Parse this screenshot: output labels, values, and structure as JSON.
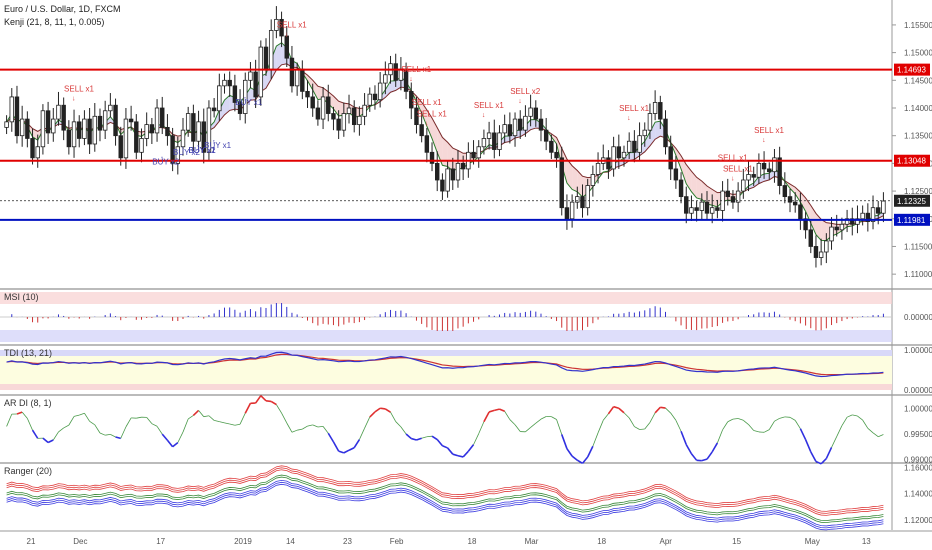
{
  "header": {
    "symbol_line": "Euro / U.S. Dollar, 1D, FXCM",
    "indicator_line": "Kenji (21, 8, 11, 1, 0.005)"
  },
  "colors": {
    "up": "#ffffff",
    "down": "#222222",
    "res_line": "#e00000",
    "sup_line": "#0010c0",
    "sell": "#d83a3a",
    "buy": "#4545b0",
    "fast_ma": "#2b7a2b",
    "slow_ma": "#7a2b2b"
  },
  "chart_data": [
    {
      "type": "candlestick",
      "title": "Euro / U.S. Dollar, 1D, FXCM",
      "subtitle": "Kenji (21, 8, 11, 1, 0.005)",
      "ylim": [
        1.1075,
        1.1595
      ],
      "y_ticks": [
        "1.15500",
        "1.15000",
        "1.14500",
        "1.14000",
        "1.13500",
        "1.13000",
        "1.12500",
        "1.12000",
        "1.11500",
        "1.11000"
      ],
      "x_ticks": [
        "21",
        "Dec",
        "17",
        "2019",
        "14",
        "23",
        "Feb",
        "18",
        "Mar",
        "18",
        "Apr",
        "15",
        "May",
        "13"
      ],
      "levels": [
        {
          "value": 1.14693,
          "label": "1.14693",
          "color": "#e00000"
        },
        {
          "value": 1.13048,
          "label": "1.13048",
          "color": "#e00000"
        },
        {
          "value": 1.12325,
          "label": "1.12325",
          "color": "#222222"
        },
        {
          "value": 1.11981,
          "label": "1.11981",
          "color": "#0010c0"
        }
      ],
      "closes": [
        1.1375,
        1.142,
        1.135,
        1.138,
        1.1345,
        1.131,
        1.133,
        1.1395,
        1.1355,
        1.138,
        1.1405,
        1.136,
        1.133,
        1.1375,
        1.1345,
        1.138,
        1.1335,
        1.1385,
        1.136,
        1.1395,
        1.1405,
        1.135,
        1.131,
        1.138,
        1.1375,
        1.132,
        1.1345,
        1.137,
        1.1355,
        1.14,
        1.1365,
        1.135,
        1.13,
        1.133,
        1.136,
        1.139,
        1.134,
        1.1375,
        1.132,
        1.14,
        1.1395,
        1.144,
        1.145,
        1.144,
        1.141,
        1.139,
        1.145,
        1.1465,
        1.142,
        1.151,
        1.147,
        1.154,
        1.156,
        1.153,
        1.149,
        1.144,
        1.147,
        1.143,
        1.142,
        1.14,
        1.138,
        1.142,
        1.139,
        1.138,
        1.136,
        1.139,
        1.14,
        1.137,
        1.1385,
        1.1405,
        1.1425,
        1.1415,
        1.1445,
        1.146,
        1.148,
        1.145,
        1.147,
        1.143,
        1.14,
        1.137,
        1.135,
        1.132,
        1.13,
        1.127,
        1.125,
        1.129,
        1.127,
        1.13,
        1.129,
        1.132,
        1.131,
        1.133,
        1.1345,
        1.1355,
        1.1325,
        1.1355,
        1.137,
        1.135,
        1.138,
        1.136,
        1.1385,
        1.14,
        1.138,
        1.136,
        1.134,
        1.132,
        1.131,
        1.122,
        1.12,
        1.123,
        1.124,
        1.122,
        1.126,
        1.128,
        1.13,
        1.131,
        1.129,
        1.133,
        1.131,
        1.132,
        1.134,
        1.132,
        1.135,
        1.136,
        1.139,
        1.141,
        1.138,
        1.133,
        1.129,
        1.127,
        1.124,
        1.121,
        1.122,
        1.1215,
        1.123,
        1.121,
        1.122,
        1.1215,
        1.125,
        1.124,
        1.123,
        1.125,
        1.127,
        1.128,
        1.1275,
        1.13,
        1.129,
        1.1285,
        1.131,
        1.126,
        1.124,
        1.123,
        1.1225,
        1.12,
        1.118,
        1.115,
        1.113,
        1.114,
        1.116,
        1.1185,
        1.118,
        1.119,
        1.12,
        1.119,
        1.12,
        1.121,
        1.1195,
        1.122,
        1.121,
        1.1232
      ],
      "signals": [
        {
          "label": "SELL x1",
          "bar": 13,
          "kind": "sell"
        },
        {
          "label": "BUY x1",
          "bar": 37,
          "kind": "buy"
        },
        {
          "label": "BUY x2",
          "bar": 30,
          "kind": "buy"
        },
        {
          "label": "BUY x2",
          "bar": 34,
          "kind": "buy"
        },
        {
          "label": "BUY x2",
          "bar": 37,
          "kind": "buy"
        },
        {
          "label": "BUY x1",
          "bar": 40,
          "kind": "buy"
        },
        {
          "label": "BUY x1",
          "bar": 46,
          "kind": "buy"
        },
        {
          "label": "BUY x1",
          "bar": 37,
          "kind": "buy"
        },
        {
          "label": "SELL x1",
          "bar": 54,
          "kind": "sell"
        },
        {
          "label": "SELL x1",
          "bar": 78,
          "kind": "sell"
        },
        {
          "label": "SELL x1",
          "bar": 80,
          "kind": "sell"
        },
        {
          "label": "SELL x1",
          "bar": 81,
          "kind": "sell"
        },
        {
          "label": "SELL x1",
          "bar": 92,
          "kind": "sell"
        },
        {
          "label": "SELL x2",
          "bar": 99,
          "kind": "sell"
        },
        {
          "label": "SELL x1",
          "bar": 120,
          "kind": "sell"
        },
        {
          "label": "SELL x1",
          "bar": 139,
          "kind": "sell"
        },
        {
          "label": "SELL x1",
          "bar": 140,
          "kind": "sell"
        },
        {
          "label": "SELL x1",
          "bar": 146,
          "kind": "sell"
        }
      ]
    },
    {
      "type": "histogram",
      "title": "MSI (10)",
      "ylim": [
        -1,
        1
      ],
      "y_ticks": [
        "0.00000"
      ]
    },
    {
      "type": "line",
      "title": "TDI (13, 21)",
      "ylim": [
        -0.1,
        1.1
      ],
      "y_ticks": [
        "1.00000",
        "0.00000"
      ]
    },
    {
      "type": "line",
      "title": "AR DI (8, 1)",
      "ylim": [
        0.9895,
        1.0025
      ],
      "y_ticks": [
        "1.00000",
        "0.99500",
        "0.99000"
      ]
    },
    {
      "type": "line",
      "title": "Ranger (20)",
      "ylim": [
        1.1125,
        1.1625
      ],
      "y_ticks": [
        "1.16000",
        "1.14000",
        "1.12000"
      ]
    }
  ],
  "labels": {
    "msi_title": "MSI (10)",
    "tdi_title": "TDI (13, 21)",
    "ardi_title": "AR DI (8, 1)",
    "ranger_title": "Ranger (20)"
  }
}
